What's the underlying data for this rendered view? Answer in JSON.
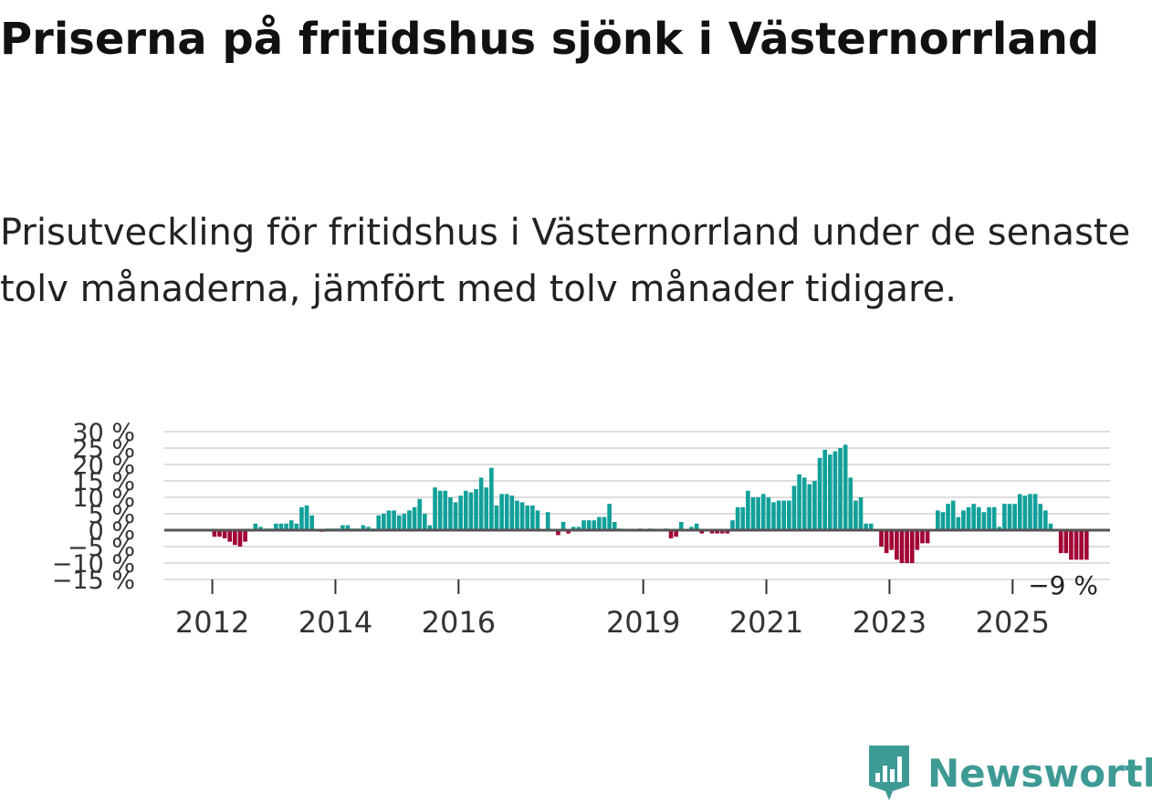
{
  "title": "Priserna på fritidshus sjönk i Västernorrland",
  "subtitle": "Prisutveckling för fritidshus i Västernorrland under de senaste tolv månaderna, jämfört med tolv månader tidigare.",
  "brand": {
    "name": "Newsworthy",
    "icon": "newsworthy-logo-icon",
    "color": "#3e9a94"
  },
  "colors": {
    "positive": "#11a09a",
    "negative": "#a10034",
    "zero_line": "#555555",
    "grid": "#dddddd"
  },
  "chart_data": {
    "type": "bar",
    "title": "",
    "xlabel": "",
    "ylabel": "",
    "unit": "%",
    "ylim": [
      -15,
      30
    ],
    "y_ticks": [
      {
        "value": 30,
        "label": "30 %"
      },
      {
        "value": 25,
        "label": "25 %"
      },
      {
        "value": 20,
        "label": "20 %"
      },
      {
        "value": 15,
        "label": "15 %"
      },
      {
        "value": 10,
        "label": "10 %"
      },
      {
        "value": 5,
        "label": "5 %"
      },
      {
        "value": 0,
        "label": "0 %"
      },
      {
        "value": -5,
        "label": "−5 %"
      },
      {
        "value": -10,
        "label": "−10 %"
      },
      {
        "value": -15,
        "label": "−15 %"
      }
    ],
    "x_ticks": [
      {
        "year": 2012,
        "label": "2012"
      },
      {
        "year": 2014,
        "label": "2014"
      },
      {
        "year": 2016,
        "label": "2016"
      },
      {
        "year": 2019,
        "label": "2019"
      },
      {
        "year": 2021,
        "label": "2021"
      },
      {
        "year": 2023,
        "label": "2023"
      },
      {
        "year": 2025,
        "label": "2025"
      }
    ],
    "start": {
      "year": 2011,
      "month": 4
    },
    "end_label": "−9 %",
    "series": [
      {
        "name": "Prisutveckling",
        "values": [
          0,
          0,
          0,
          0,
          0,
          0,
          0,
          0,
          0,
          -2,
          -2,
          -2.5,
          -3.5,
          -4.5,
          -5,
          -3.5,
          0,
          2,
          1,
          0.5,
          0.5,
          2,
          2,
          2,
          3,
          2,
          7,
          7.5,
          4.5,
          0,
          -0.5,
          0.5,
          0.5,
          0.5,
          1.5,
          1.5,
          0.5,
          0.5,
          1.5,
          1,
          0.5,
          4.5,
          5,
          6,
          6,
          4.5,
          5,
          6,
          7,
          9.5,
          5,
          1.5,
          13,
          12,
          12,
          10,
          8.5,
          10.5,
          12,
          11.5,
          12.5,
          16,
          13,
          19,
          7.5,
          11,
          11,
          10.5,
          9,
          8.5,
          7.5,
          7.5,
          6,
          0,
          5.5,
          0,
          -1.5,
          2.5,
          -1,
          1,
          1,
          3,
          3,
          3,
          4,
          4,
          8,
          2.5,
          0.5,
          0,
          0,
          0,
          0.5,
          0,
          0.5,
          0,
          0,
          0.5,
          -2.5,
          -2,
          2.5,
          0,
          1,
          2,
          -1,
          0,
          -1,
          -1,
          -1,
          -1,
          3,
          7,
          7,
          12,
          10,
          10,
          11,
          10,
          8.5,
          9,
          9,
          9,
          13.5,
          17,
          16,
          14,
          15,
          22,
          24.5,
          23,
          24,
          25,
          26,
          16,
          9,
          10,
          2,
          2,
          0,
          -5,
          -7,
          -6,
          -9,
          -10,
          -10,
          -10,
          -6,
          -4,
          -4,
          0,
          6,
          5.5,
          8,
          9,
          4,
          6,
          7,
          8,
          7,
          5.5,
          7,
          7,
          1,
          8,
          8,
          8,
          11,
          10.5,
          11,
          11,
          8,
          6,
          2,
          0,
          -7,
          -7,
          -9,
          -9,
          -9,
          -9
        ]
      }
    ]
  }
}
